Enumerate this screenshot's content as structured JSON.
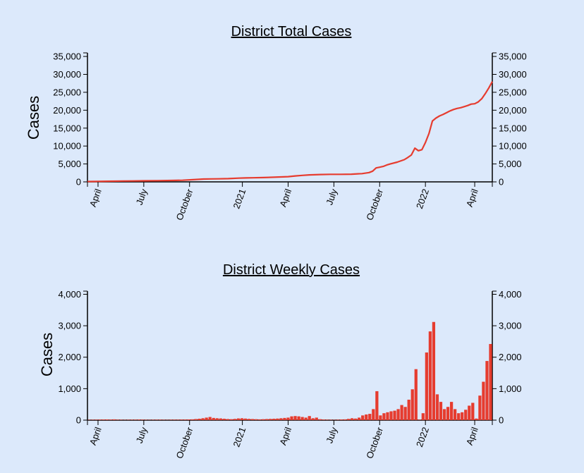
{
  "colors": {
    "background": "#dce9fb",
    "series": "#e63c2f"
  },
  "charts": {
    "total": {
      "title": "District Total Cases",
      "ylabel": "Cases"
    },
    "weekly": {
      "title": "District Weekly Cases",
      "ylabel": "Cases"
    }
  },
  "chart_data": [
    {
      "type": "line",
      "title": "District Total Cases",
      "xlabel": "",
      "ylabel": "Cases",
      "x_range": [
        0,
        115
      ],
      "x_unit": "weeks since mid-March 2020",
      "ylim": [
        0,
        36000
      ],
      "yticks": [
        0,
        5000,
        10000,
        15000,
        20000,
        25000,
        30000,
        35000
      ],
      "ytick_labels": [
        "0",
        "5,000",
        "10,000",
        "15,000",
        "20,000",
        "25,000",
        "30,000",
        "35,000"
      ],
      "xticks": [
        {
          "label": "April",
          "x": 3
        },
        {
          "label": "July",
          "x": 16
        },
        {
          "label": "October",
          "x": 29
        },
        {
          "label": "2021",
          "x": 44
        },
        {
          "label": "April",
          "x": 57
        },
        {
          "label": "July",
          "x": 70
        },
        {
          "label": "October",
          "x": 83
        },
        {
          "label": "2022",
          "x": 96
        },
        {
          "label": "April",
          "x": 110
        }
      ],
      "grid": false,
      "series": [
        {
          "name": "Total Cases",
          "x": [
            0,
            3,
            6,
            10,
            13,
            16,
            20,
            24,
            27,
            30,
            33,
            35,
            37,
            40,
            43,
            45,
            47,
            50,
            53,
            57,
            59,
            61,
            63,
            66,
            69,
            72,
            75,
            78,
            80,
            81,
            82,
            83,
            84,
            85,
            86,
            88,
            90,
            91,
            92,
            93,
            94,
            95,
            96,
            97,
            98,
            99,
            100,
            101,
            102,
            103,
            104,
            105,
            106,
            107,
            108,
            109,
            110,
            111,
            112,
            113,
            114,
            115
          ],
          "values": [
            100,
            120,
            180,
            230,
            260,
            300,
            330,
            400,
            460,
            600,
            780,
            820,
            850,
            900,
            1050,
            1100,
            1150,
            1200,
            1300,
            1450,
            1650,
            1800,
            1950,
            2050,
            2100,
            2100,
            2150,
            2300,
            2600,
            3000,
            3900,
            4100,
            4300,
            4700,
            5000,
            5500,
            6200,
            6800,
            7500,
            9400,
            8700,
            9000,
            11000,
            13500,
            17000,
            17800,
            18400,
            18800,
            19300,
            19800,
            20200,
            20500,
            20700,
            21000,
            21300,
            21700,
            21800,
            22300,
            23200,
            24600,
            26200,
            28000
          ]
        }
      ]
    },
    {
      "type": "bar",
      "title": "District Weekly Cases",
      "xlabel": "",
      "ylabel": "Cases",
      "x_range": [
        0,
        115
      ],
      "x_unit": "weeks since mid-March 2020",
      "ylim": [
        0,
        4100
      ],
      "yticks": [
        0,
        1000,
        2000,
        3000,
        4000
      ],
      "ytick_labels": [
        "0",
        "1,000",
        "2,000",
        "3,000",
        "4,000"
      ],
      "xticks": [
        {
          "label": "April",
          "x": 3
        },
        {
          "label": "July",
          "x": 16
        },
        {
          "label": "October",
          "x": 29
        },
        {
          "label": "2021",
          "x": 44
        },
        {
          "label": "April",
          "x": 57
        },
        {
          "label": "July",
          "x": 70
        },
        {
          "label": "October",
          "x": 83
        },
        {
          "label": "2022",
          "x": 96
        },
        {
          "label": "April",
          "x": 110
        }
      ],
      "grid": false,
      "series": [
        {
          "name": "Weekly Cases",
          "values": [
            10,
            12,
            15,
            18,
            20,
            22,
            18,
            25,
            15,
            12,
            10,
            12,
            14,
            16,
            18,
            15,
            12,
            10,
            12,
            14,
            15,
            12,
            10,
            14,
            16,
            15,
            18,
            20,
            22,
            25,
            35,
            45,
            60,
            80,
            100,
            70,
            60,
            55,
            45,
            35,
            30,
            40,
            55,
            60,
            50,
            40,
            35,
            30,
            25,
            30,
            35,
            40,
            45,
            50,
            60,
            70,
            80,
            120,
            130,
            120,
            100,
            80,
            130,
            60,
            80,
            30,
            20,
            15,
            12,
            10,
            15,
            20,
            25,
            40,
            60,
            50,
            80,
            150,
            180,
            200,
            350,
            920,
            150,
            220,
            250,
            280,
            300,
            350,
            480,
            420,
            650,
            980,
            1620,
            15,
            220,
            2150,
            2820,
            3120,
            820,
            580,
            350,
            420,
            580,
            350,
            220,
            250,
            330,
            460,
            550,
            50,
            780,
            1220,
            1880,
            2420
          ]
        }
      ]
    }
  ]
}
